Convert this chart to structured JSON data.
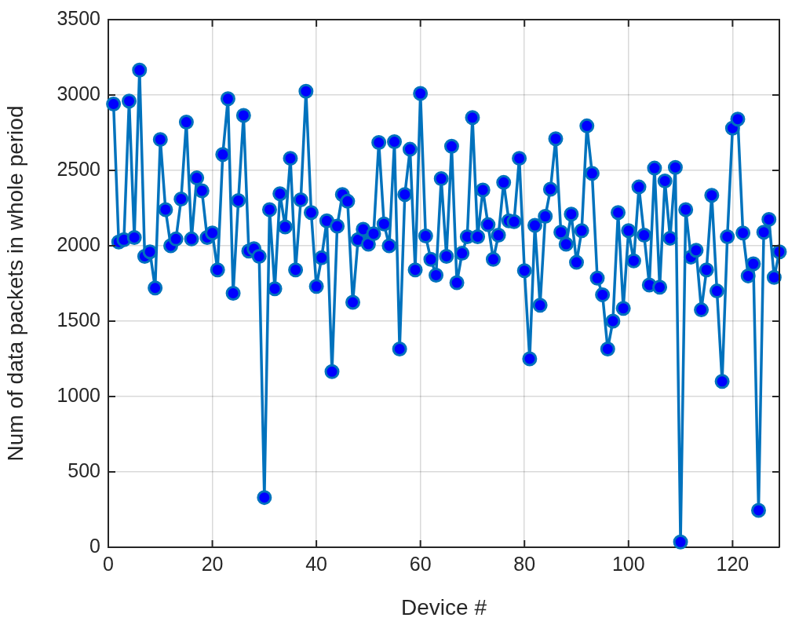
{
  "chart_data": {
    "type": "line",
    "xlabel": "Device #",
    "ylabel": "Num of data packets in whole period",
    "x": [
      1,
      2,
      3,
      4,
      5,
      6,
      7,
      8,
      9,
      10,
      11,
      12,
      13,
      14,
      15,
      16,
      17,
      18,
      19,
      20,
      21,
      22,
      23,
      24,
      25,
      26,
      27,
      28,
      29,
      30,
      31,
      32,
      33,
      34,
      35,
      36,
      37,
      38,
      39,
      40,
      41,
      42,
      43,
      44,
      45,
      46,
      47,
      48,
      49,
      50,
      51,
      52,
      53,
      54,
      55,
      56,
      57,
      58,
      59,
      60,
      61,
      62,
      63,
      64,
      65,
      66,
      67,
      68,
      69,
      70,
      71,
      72,
      73,
      74,
      75,
      76,
      77,
      78,
      79,
      80,
      81,
      82,
      83,
      84,
      85,
      86,
      87,
      88,
      89,
      90,
      91,
      92,
      93,
      94,
      95,
      96,
      97,
      98,
      99,
      100,
      101,
      102,
      103,
      104,
      105,
      106,
      107,
      108,
      109,
      110,
      111,
      112,
      113,
      114,
      115,
      116,
      117,
      118,
      119,
      120,
      121,
      122,
      123,
      124,
      125,
      126,
      127,
      128,
      129
    ],
    "series": [
      {
        "color": "#0072bd",
        "values": [
          2940,
          2025,
          2040,
          2960,
          2055,
          3165,
          1930,
          1960,
          1720,
          2705,
          2240,
          2000,
          2045,
          2310,
          2820,
          2045,
          2450,
          2365,
          2055,
          2085,
          1840,
          2605,
          2975,
          1685,
          2300,
          2865,
          1965,
          1980,
          1930,
          330,
          2240,
          1715,
          2345,
          2125,
          2580,
          1840,
          2305,
          3025,
          2220,
          1730,
          1920,
          2165,
          1165,
          2130,
          2340,
          2295,
          1625,
          2040,
          2110,
          2010,
          2080,
          2685,
          2145,
          2000,
          2690,
          1315,
          2340,
          2640,
          1840,
          3010,
          2065,
          1910,
          1805,
          2445,
          1930,
          2660,
          1755,
          1950,
          2060,
          2850,
          2060,
          2370,
          2140,
          1910,
          2070,
          2420,
          2165,
          2160,
          2580,
          1835,
          1250,
          2135,
          1605,
          2195,
          2375,
          2710,
          2090,
          2010,
          2210,
          1890,
          2100,
          2795,
          2480,
          1785,
          1675,
          1315,
          1500,
          2220,
          1585,
          2100,
          1900,
          2390,
          2070,
          1740,
          2515,
          1725,
          2430,
          2050,
          2520,
          35,
          2240,
          1925,
          1970,
          1575,
          1840,
          2335,
          1700,
          1100,
          2060,
          2780,
          2840,
          2085,
          1800,
          1880,
          245,
          2090,
          2175,
          1790,
          1960
        ]
      }
    ],
    "xlim": [
      0,
      129
    ],
    "xticks": [
      0,
      20,
      40,
      60,
      80,
      100,
      120
    ],
    "ylim": [
      0,
      3500
    ],
    "yticks": [
      0,
      500,
      1000,
      1500,
      2000,
      2500,
      3000,
      3500
    ],
    "grid": true,
    "marker": "circle",
    "line_style": "solid"
  }
}
